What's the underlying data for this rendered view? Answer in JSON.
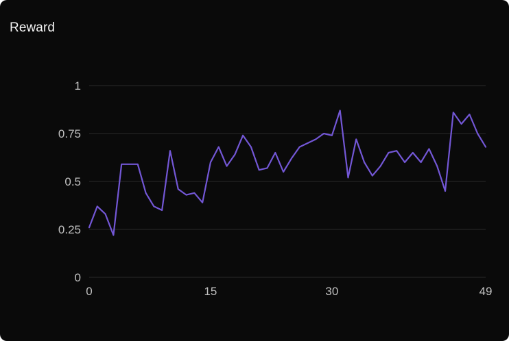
{
  "panel": {
    "background": "#0a0a0a"
  },
  "chart_data": {
    "type": "line",
    "title": "Reward",
    "xlabel": "",
    "ylabel": "",
    "x_range": [
      0,
      49
    ],
    "ylim": [
      0,
      1
    ],
    "xlim": [
      0,
      49
    ],
    "grid": true,
    "legend": "none",
    "xticks": [
      0,
      15,
      30,
      49
    ],
    "xtick_labels": [
      "0",
      "15",
      "30",
      "49"
    ],
    "yticks": [
      0,
      0.25,
      0.5,
      0.75,
      1
    ],
    "ytick_labels": [
      "0",
      "0.25",
      "0.5",
      "0.75",
      "1"
    ],
    "values": [
      0.26,
      0.37,
      0.33,
      0.22,
      0.59,
      0.59,
      0.59,
      0.44,
      0.37,
      0.35,
      0.66,
      0.46,
      0.43,
      0.44,
      0.39,
      0.6,
      0.68,
      0.58,
      0.64,
      0.74,
      0.68,
      0.56,
      0.57,
      0.65,
      0.55,
      0.62,
      0.68,
      0.7,
      0.72,
      0.75,
      0.74,
      0.87,
      0.52,
      0.72,
      0.6,
      0.53,
      0.58,
      0.65,
      0.66,
      0.6,
      0.65,
      0.6,
      0.67,
      0.58,
      0.45,
      0.86,
      0.8,
      0.85,
      0.75,
      0.68
    ],
    "colors": {
      "line": "#7357d6",
      "grid": "#2a2a2a",
      "label": "#c1c1c1",
      "title": "#f4f4f4",
      "background": "#0a0a0a"
    }
  }
}
